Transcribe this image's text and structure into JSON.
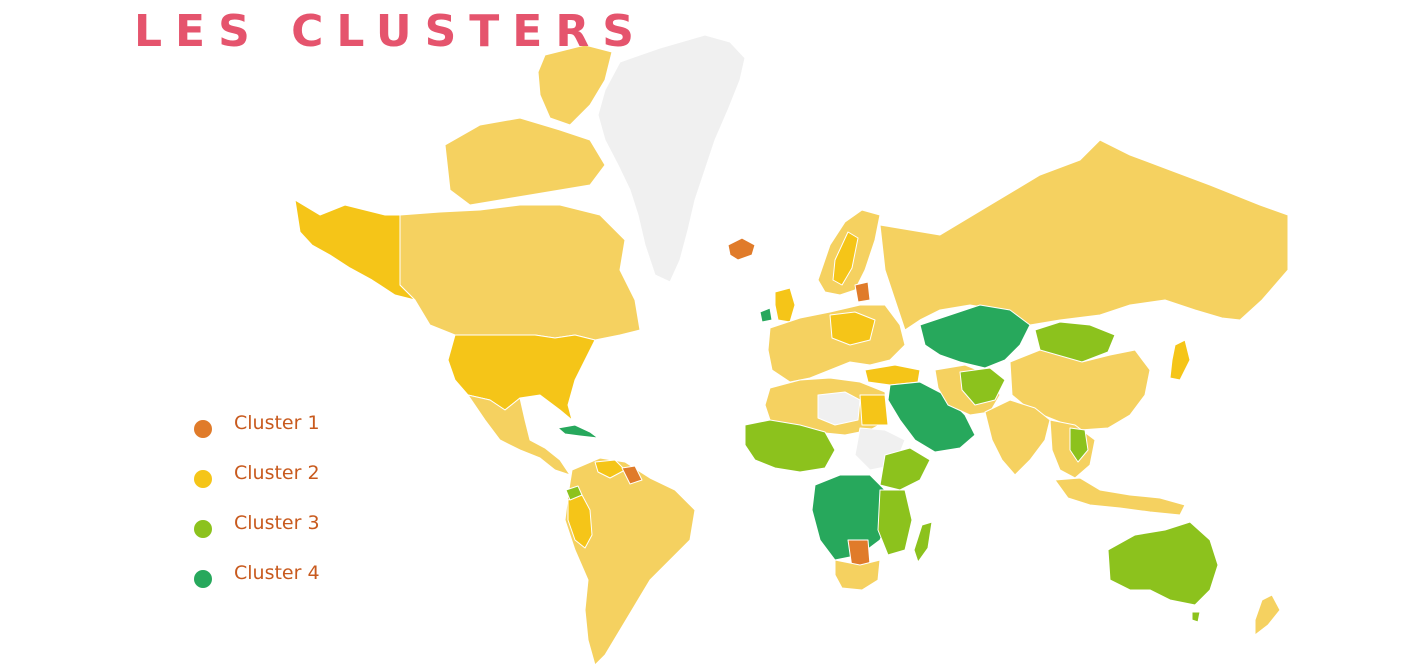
{
  "title": "LES CLUSTERS",
  "colors": {
    "cluster_1": "#e07b2a",
    "cluster_2_strong": "#f5c518",
    "cluster_2": "#f5d160",
    "cluster_3": "#8cc21d",
    "cluster_4": "#27a85c",
    "no_data": "#f0f0f0",
    "title": "#e5546d",
    "legend_text": "#c85a1e"
  },
  "legend": {
    "items": [
      {
        "label": "Cluster 1",
        "color": "#e07b2a"
      },
      {
        "label": "Cluster 2",
        "color": "#f5c518"
      },
      {
        "label": "Cluster 3",
        "color": "#8cc21d"
      },
      {
        "label": "Cluster 4",
        "color": "#27a85c"
      }
    ]
  },
  "regions": [
    {
      "name": "greenland",
      "cluster": "no_data"
    },
    {
      "name": "canada",
      "cluster": "2"
    },
    {
      "name": "alaska",
      "cluster": "2s"
    },
    {
      "name": "usa",
      "cluster": "2s"
    },
    {
      "name": "mexico",
      "cluster": "2"
    },
    {
      "name": "south-america",
      "cluster": "2"
    },
    {
      "name": "peru",
      "cluster": "2s"
    },
    {
      "name": "iceland",
      "cluster": "1"
    },
    {
      "name": "europe",
      "cluster": "2"
    },
    {
      "name": "russia",
      "cluster": "2"
    },
    {
      "name": "kazakhstan",
      "cluster": "4"
    },
    {
      "name": "mongolia",
      "cluster": "3"
    },
    {
      "name": "china",
      "cluster": "2"
    },
    {
      "name": "india",
      "cluster": "2"
    },
    {
      "name": "arabia",
      "cluster": "4"
    },
    {
      "name": "north-africa",
      "cluster": "2"
    },
    {
      "name": "west-africa",
      "cluster": "3"
    },
    {
      "name": "central-africa",
      "cluster": "4"
    },
    {
      "name": "east-africa",
      "cluster": "3"
    },
    {
      "name": "southern-africa",
      "cluster": "2"
    },
    {
      "name": "australia",
      "cluster": "3"
    },
    {
      "name": "indonesia",
      "cluster": "2"
    },
    {
      "name": "japan",
      "cluster": "2s"
    },
    {
      "name": "madagascar",
      "cluster": "3"
    },
    {
      "name": "guyana",
      "cluster": "1"
    },
    {
      "name": "zambia-botswana",
      "cluster": "1"
    },
    {
      "name": "ireland",
      "cluster": "4"
    },
    {
      "name": "baltics",
      "cluster": "1"
    }
  ]
}
